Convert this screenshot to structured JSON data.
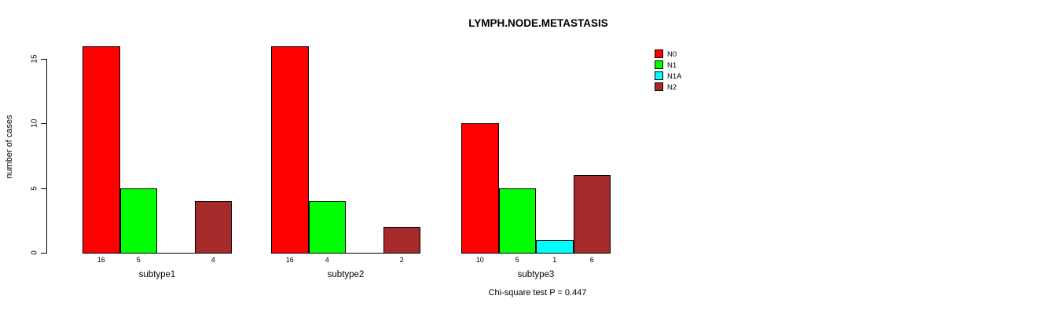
{
  "chart_data": {
    "type": "bar",
    "title": "LYMPH.NODE.METASTASIS",
    "xlabel": "",
    "ylabel": "number of cases",
    "categories": [
      "subtype1",
      "subtype2",
      "subtype3"
    ],
    "series": [
      {
        "name": "N0",
        "color": "#FF0000",
        "values": [
          16,
          16,
          10
        ]
      },
      {
        "name": "N1",
        "color": "#00FF00",
        "values": [
          5,
          4,
          5
        ]
      },
      {
        "name": "N1A",
        "color": "#00FFFF",
        "values": [
          0,
          0,
          1
        ]
      },
      {
        "name": "N2",
        "color": "#A52A2A",
        "values": [
          4,
          2,
          6
        ]
      }
    ],
    "yticks": [
      0,
      5,
      10,
      15
    ],
    "ylim": [
      0,
      16.6
    ],
    "grid": false,
    "legend_position": "top-right",
    "bar_value_labels_shown": true,
    "zero_value_labels_hidden": true,
    "annotation": "Chi-square test P = 0.447"
  }
}
